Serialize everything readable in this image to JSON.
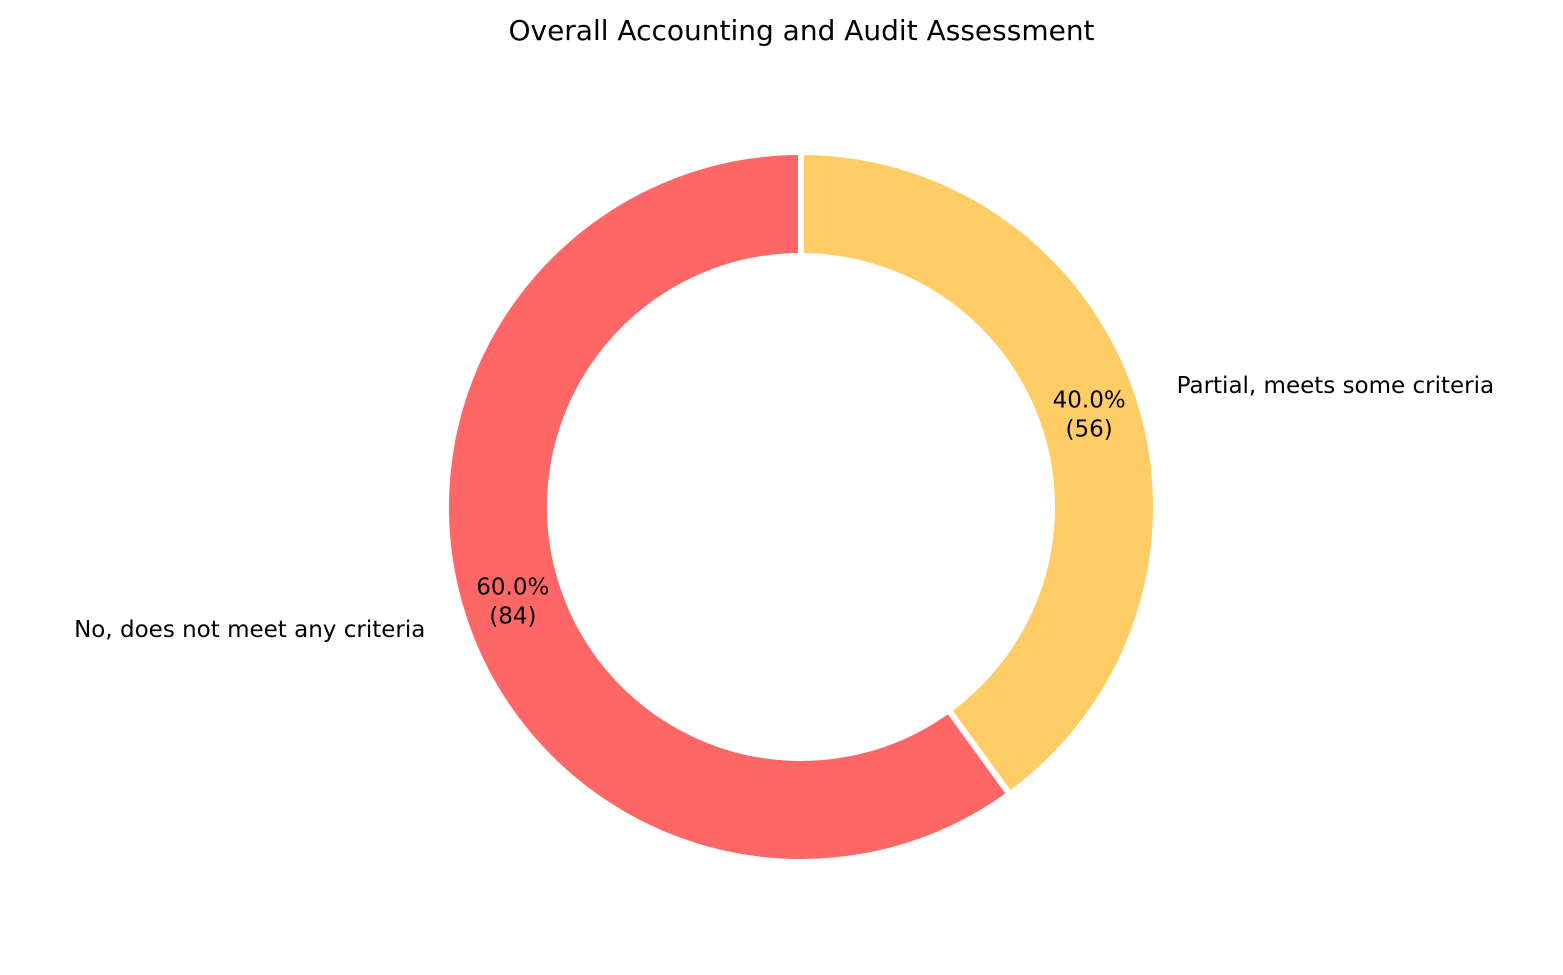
{
  "chart_data": {
    "type": "pie",
    "variant": "donut",
    "title": "Overall Accounting and Audit Assessment",
    "start_angle_deg": 90,
    "direction": "clockwise",
    "slices": [
      {
        "label": "Partial, meets some criteria",
        "value": 56,
        "percent_label": "40.0%",
        "count_label": "(56)",
        "color": "#FFCC66"
      },
      {
        "label": "No, does not meet any criteria",
        "value": 84,
        "percent_label": "60.0%",
        "count_label": "(84)",
        "color": "#FF6666"
      }
    ],
    "edge_color": "#FFFFFF",
    "legend": "none"
  }
}
